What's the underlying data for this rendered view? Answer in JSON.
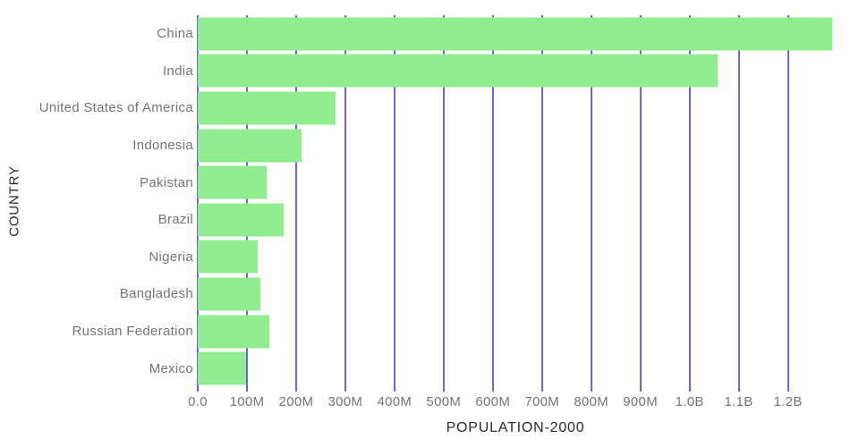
{
  "chart_data": {
    "type": "bar",
    "orientation": "horizontal",
    "title": "",
    "xlabel": "POPULATION-2000",
    "ylabel": "COUNTRY",
    "categories": [
      "China",
      "India",
      "United States of America",
      "Indonesia",
      "Pakistan",
      "Brazil",
      "Nigeria",
      "Bangladesh",
      "Russian Federation",
      "Mexico"
    ],
    "values_millions": [
      1290,
      1057,
      281,
      211,
      141,
      175,
      122,
      128,
      146,
      99
    ],
    "xlim_millions": [
      0,
      1290
    ],
    "x_ticks": [
      {
        "value_millions": 0,
        "label": "0.0"
      },
      {
        "value_millions": 100,
        "label": "100M"
      },
      {
        "value_millions": 200,
        "label": "200M"
      },
      {
        "value_millions": 300,
        "label": "300M"
      },
      {
        "value_millions": 400,
        "label": "400M"
      },
      {
        "value_millions": 500,
        "label": "500M"
      },
      {
        "value_millions": 600,
        "label": "600M"
      },
      {
        "value_millions": 700,
        "label": "700M"
      },
      {
        "value_millions": 800,
        "label": "800M"
      },
      {
        "value_millions": 900,
        "label": "900M"
      },
      {
        "value_millions": 1000,
        "label": "1.0B"
      },
      {
        "value_millions": 1100,
        "label": "1.1B"
      },
      {
        "value_millions": 1200,
        "label": "1.2B"
      }
    ],
    "grid": true,
    "legend": false,
    "colors": {
      "bar": "#90ee90",
      "gridline": "#6a63f0",
      "tick_label": "#757575",
      "axis_title": "#2b2b2b",
      "background": "#ffffff"
    }
  }
}
